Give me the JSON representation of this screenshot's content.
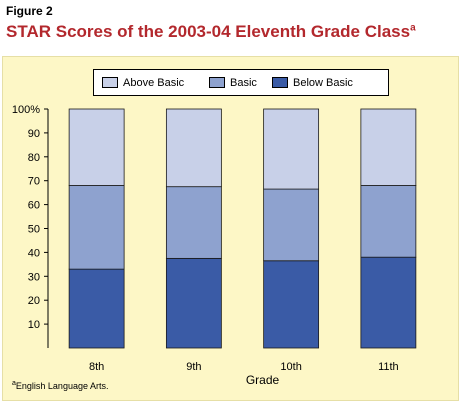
{
  "figure_label": "Figure 2",
  "title": "STAR Scores of the 2003-04 Eleventh Grade Class",
  "title_superscript": "a",
  "footnote_marker": "a",
  "footnote_text": "English Language Arts.",
  "colors": {
    "above_basic": "#c8d0e8",
    "basic": "#8ea2cf",
    "below_basic": "#3a5ba6",
    "title": "#b3282d",
    "panel_background": "#fdf7c6"
  },
  "chart_data": {
    "type": "bar",
    "stacked": true,
    "categories": [
      "8th",
      "9th",
      "10th",
      "11th"
    ],
    "series": [
      {
        "name": "Below Basic",
        "values": [
          33,
          37.5,
          36.5,
          38
        ]
      },
      {
        "name": "Basic",
        "values": [
          35,
          30,
          30,
          30
        ]
      },
      {
        "name": "Above Basic",
        "values": [
          32,
          32.5,
          33.5,
          32
        ]
      }
    ],
    "legend_order": [
      "Above Basic",
      "Basic",
      "Below Basic"
    ],
    "legend_position": "top",
    "xlabel": "Grade",
    "ylabel": "",
    "ylim": [
      0,
      100
    ],
    "y_ticks": [
      "10",
      "20",
      "30",
      "40",
      "50",
      "60",
      "70",
      "80",
      "90",
      "100%"
    ],
    "grid": false
  }
}
